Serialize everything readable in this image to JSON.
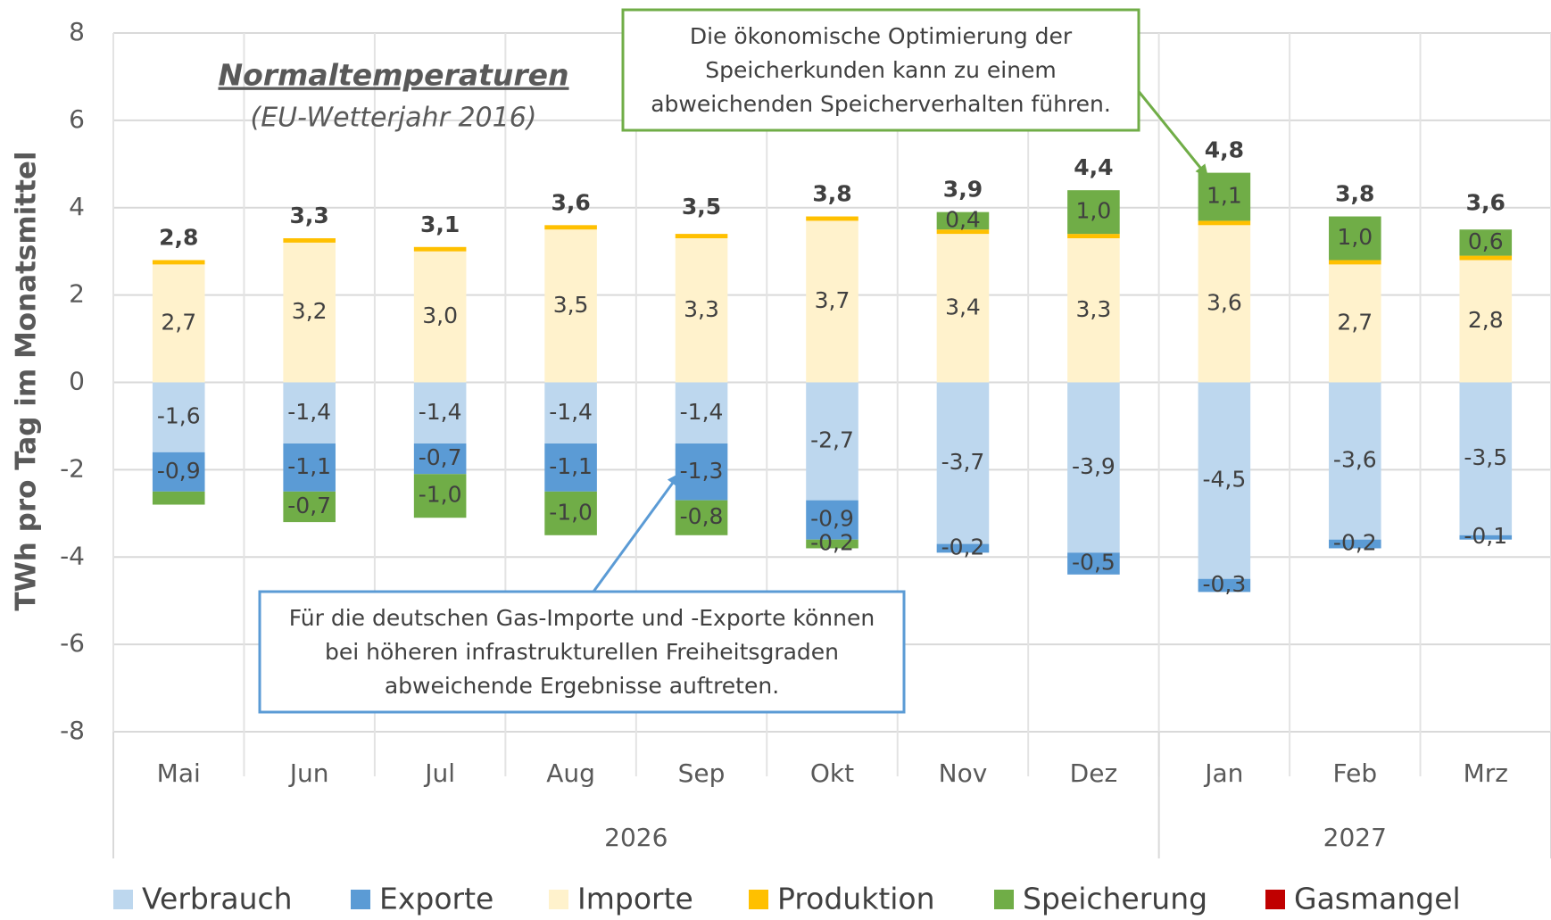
{
  "chart_data": {
    "type": "stacked_bar",
    "y_axis_label": "TWh pro Tag im Monatsmittel",
    "subtitle": "Normaltemperaturen",
    "subtitle_note": "(EU-Wetterjahr 2016)",
    "categories": [
      "Mai",
      "Jun",
      "Jul",
      "Aug",
      "Sep",
      "Okt",
      "Nov",
      "Dez",
      "Jan",
      "Feb",
      "Mrz"
    ],
    "category_groups": [
      {
        "label": "2026",
        "span": 8
      },
      {
        "label": "2027",
        "span": 3
      }
    ],
    "series": [
      {
        "name": "Verbrauch",
        "color": "#bdd7ee",
        "values": [
          -1.6,
          -1.4,
          -1.4,
          -1.4,
          -1.4,
          -2.7,
          -3.7,
          -3.9,
          -4.5,
          -3.6,
          -3.5
        ],
        "value_labels": [
          "-1,6",
          "-1,4",
          "-1,4",
          "-1,4",
          "-1,4",
          "-2,7",
          "-3,7",
          "-3,9",
          "-4,5",
          "-3,6",
          "-3,5"
        ]
      },
      {
        "name": "Exporte",
        "color": "#5b9bd5",
        "values": [
          -0.9,
          -1.1,
          -0.7,
          -1.1,
          -1.3,
          -0.9,
          -0.2,
          -0.5,
          -0.3,
          -0.2,
          -0.1
        ],
        "value_labels": [
          "-0,9",
          "-1,1",
          "-0,7",
          "-1,1",
          "-1,3",
          "-0,9",
          "-0,2",
          "-0,5",
          "-0,3",
          "-0,2",
          "-0,1"
        ]
      },
      {
        "name": "Importe",
        "color": "#fff2cc",
        "values": [
          2.7,
          3.2,
          3.0,
          3.5,
          3.3,
          3.7,
          3.4,
          3.3,
          3.6,
          2.7,
          2.8
        ],
        "value_labels": [
          "2,7",
          "3,2",
          "3,0",
          "3,5",
          "3,3",
          "3,7",
          "3,4",
          "3,3",
          "3,6",
          "2,7",
          "2,8"
        ]
      },
      {
        "name": "Produktion",
        "color": "#ffc000",
        "values": [
          0.1,
          0.1,
          0.1,
          0.1,
          0.1,
          0.1,
          0.1,
          0.1,
          0.1,
          0.1,
          0.1
        ]
      },
      {
        "name": "Speicherung",
        "color": "#70ad47",
        "values": [
          -0.3,
          -0.7,
          -1.0,
          -1.0,
          -0.8,
          -0.2,
          0.4,
          1.0,
          1.1,
          1.0,
          0.6
        ],
        "value_labels": [
          null,
          "-0,7",
          "-1,0",
          "-1,0",
          "-0,8",
          "-0,2",
          "0,4",
          "1,0",
          "1,1",
          "1,0",
          "0,6"
        ]
      },
      {
        "name": "Gasmangel",
        "color": "#c00000",
        "values": [
          0,
          0,
          0,
          0,
          0,
          0,
          0,
          0,
          0,
          0,
          0
        ]
      }
    ],
    "totals": [
      2.8,
      3.3,
      3.1,
      3.6,
      3.5,
      3.8,
      3.9,
      4.4,
      4.8,
      3.8,
      3.6
    ],
    "total_labels": [
      "2,8",
      "3,3",
      "3,1",
      "3,6",
      "3,5",
      "3,8",
      "3,9",
      "4,4",
      "4,8",
      "3,8",
      "3,6"
    ],
    "ylim": [
      -8,
      8
    ],
    "yticks": [
      -8,
      -6,
      -4,
      -2,
      0,
      2,
      4,
      6,
      8
    ],
    "grid": true,
    "annotations": [
      {
        "lines": [
          "Die ökonomische Optimierung der",
          "Speicherkunden kann zu einem",
          "abweichenden Speicherverhalten führen."
        ],
        "color": "#70ad47"
      },
      {
        "lines": [
          "Für die deutschen Gas-Importe und -Exporte können",
          "bei höheren infrastrukturellen Freiheitsgraden",
          "abweichende Ergebnisse auftreten."
        ],
        "color": "#5b9bd5"
      }
    ]
  }
}
